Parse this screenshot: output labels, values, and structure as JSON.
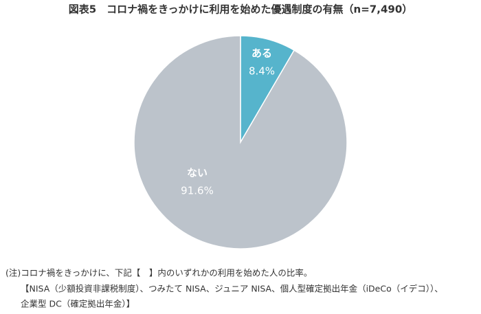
{
  "chart_data": {
    "type": "pie",
    "title": "図表5　コロナ禍をきっかけに利用を始めた優遇制度の有無（n=7,490）",
    "categories": [
      "ある",
      "ない"
    ],
    "values": [
      8.4,
      91.6
    ],
    "value_labels": [
      "8.4%",
      "91.6%"
    ],
    "colors": [
      "#56b4cc",
      "#bcc3cb"
    ],
    "notes": [
      "(注)コロナ禍をきっかけに、下記【　】内のいずれかの利用を始めた人の比率。",
      "【NISA（少額投資非課税制度）、つみたて NISA、ジュニア NISA、個人型確定拠出年金（iDeCo（イデコ））、",
      "企業型 DC（確定拠出年金）】"
    ]
  }
}
